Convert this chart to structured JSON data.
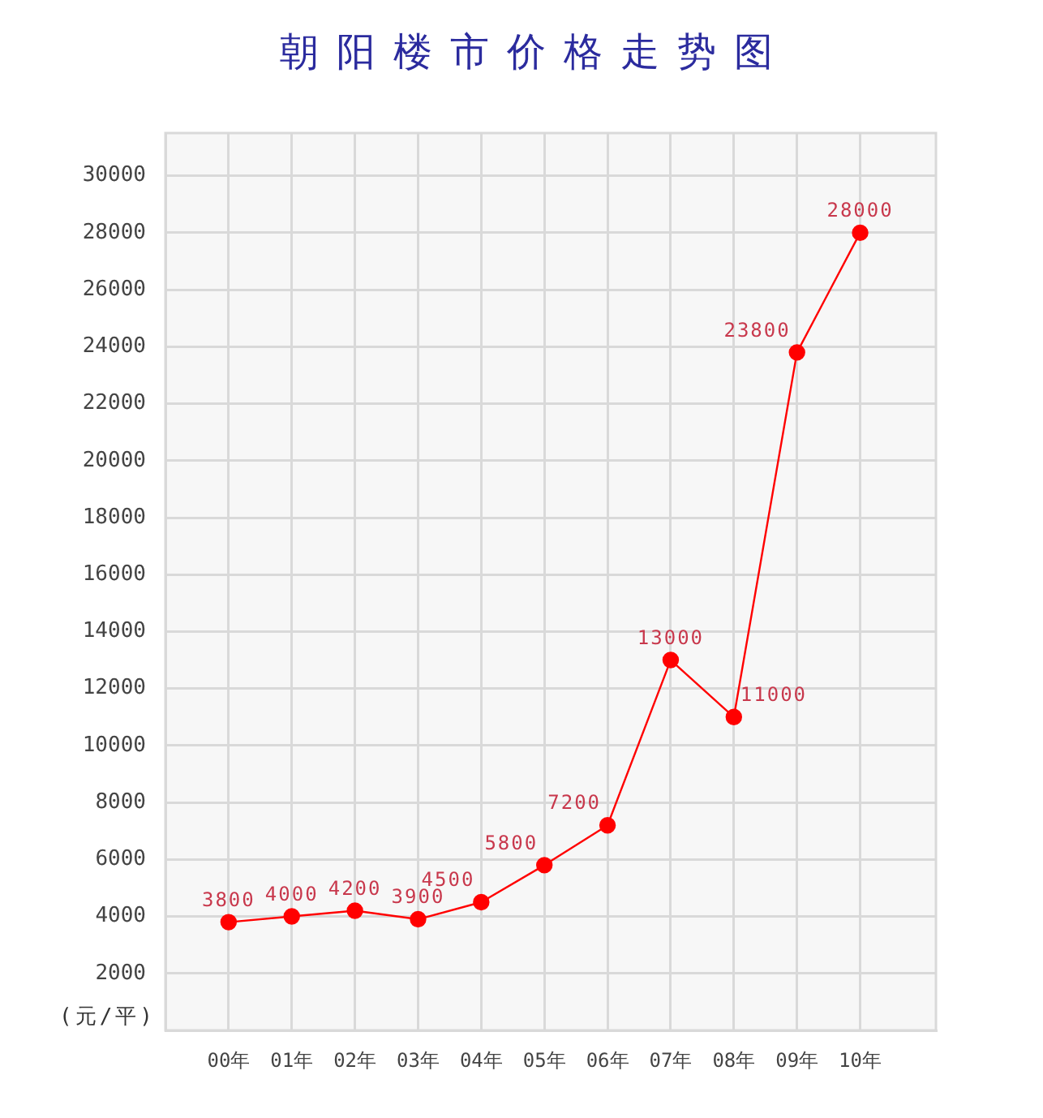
{
  "chart_data": {
    "type": "line",
    "title": "朝阳楼市价格走势图",
    "ylabel": "(元/平)",
    "categories": [
      "00年",
      "01年",
      "02年",
      "03年",
      "04年",
      "05年",
      "06年",
      "07年",
      "08年",
      "09年",
      "10年"
    ],
    "series": [
      {
        "color": "#ff0000",
        "values": [
          3800,
          4000,
          4200,
          3900,
          4500,
          5800,
          7200,
          13000,
          11000,
          23800,
          28000
        ]
      }
    ],
    "ylim": [
      0,
      31500
    ],
    "yticks": [
      2000,
      4000,
      6000,
      8000,
      10000,
      12000,
      14000,
      16000,
      18000,
      20000,
      22000,
      24000,
      26000,
      28000,
      30000
    ],
    "grid": true,
    "legend": false,
    "marker": "circle",
    "line_style": "solid",
    "data_labels": true
  }
}
